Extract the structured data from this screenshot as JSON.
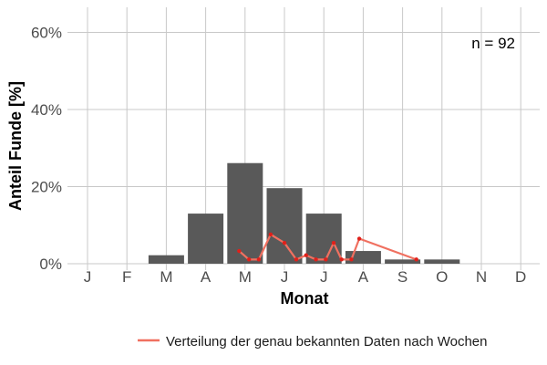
{
  "chart_data": {
    "type": "bar",
    "xlabel": "Monat",
    "ylabel": "Anteil Funde [%]",
    "ylim": [
      0,
      65
    ],
    "yticks": [
      0,
      20,
      40,
      60
    ],
    "ytick_labels": [
      "0%",
      "20%",
      "40%",
      "60%"
    ],
    "grid": true,
    "categories": [
      "J",
      "F",
      "M",
      "A",
      "M",
      "J",
      "J",
      "A",
      "S",
      "O",
      "N",
      "D"
    ],
    "series": [
      {
        "type": "bar",
        "values": [
          0,
          0,
          2.2,
          13.0,
          26.1,
          19.6,
          13.0,
          3.3,
          1.1,
          1.1,
          0,
          0
        ]
      },
      {
        "type": "line",
        "name": "Verteilung der genau bekannten Daten nach Wochen",
        "color": "#f07060",
        "points": [
          [
            3.85,
            3.3
          ],
          [
            4.1,
            1.1
          ],
          [
            4.35,
            1.1
          ],
          [
            4.65,
            7.6
          ],
          [
            5.0,
            5.4
          ],
          [
            5.3,
            1.1
          ],
          [
            5.55,
            2.2
          ],
          [
            5.8,
            1.1
          ],
          [
            6.05,
            1.1
          ],
          [
            6.25,
            5.4
          ],
          [
            6.45,
            1.1
          ],
          [
            6.7,
            1.1
          ],
          [
            6.9,
            6.5
          ],
          [
            8.35,
            1.1
          ]
        ]
      }
    ],
    "annotation": "n = 92",
    "legend_position": "bottom"
  },
  "colors": {
    "bar": "#595959",
    "line": "#f07060",
    "point": "#e0201a",
    "grid": "#c8c8c8"
  }
}
